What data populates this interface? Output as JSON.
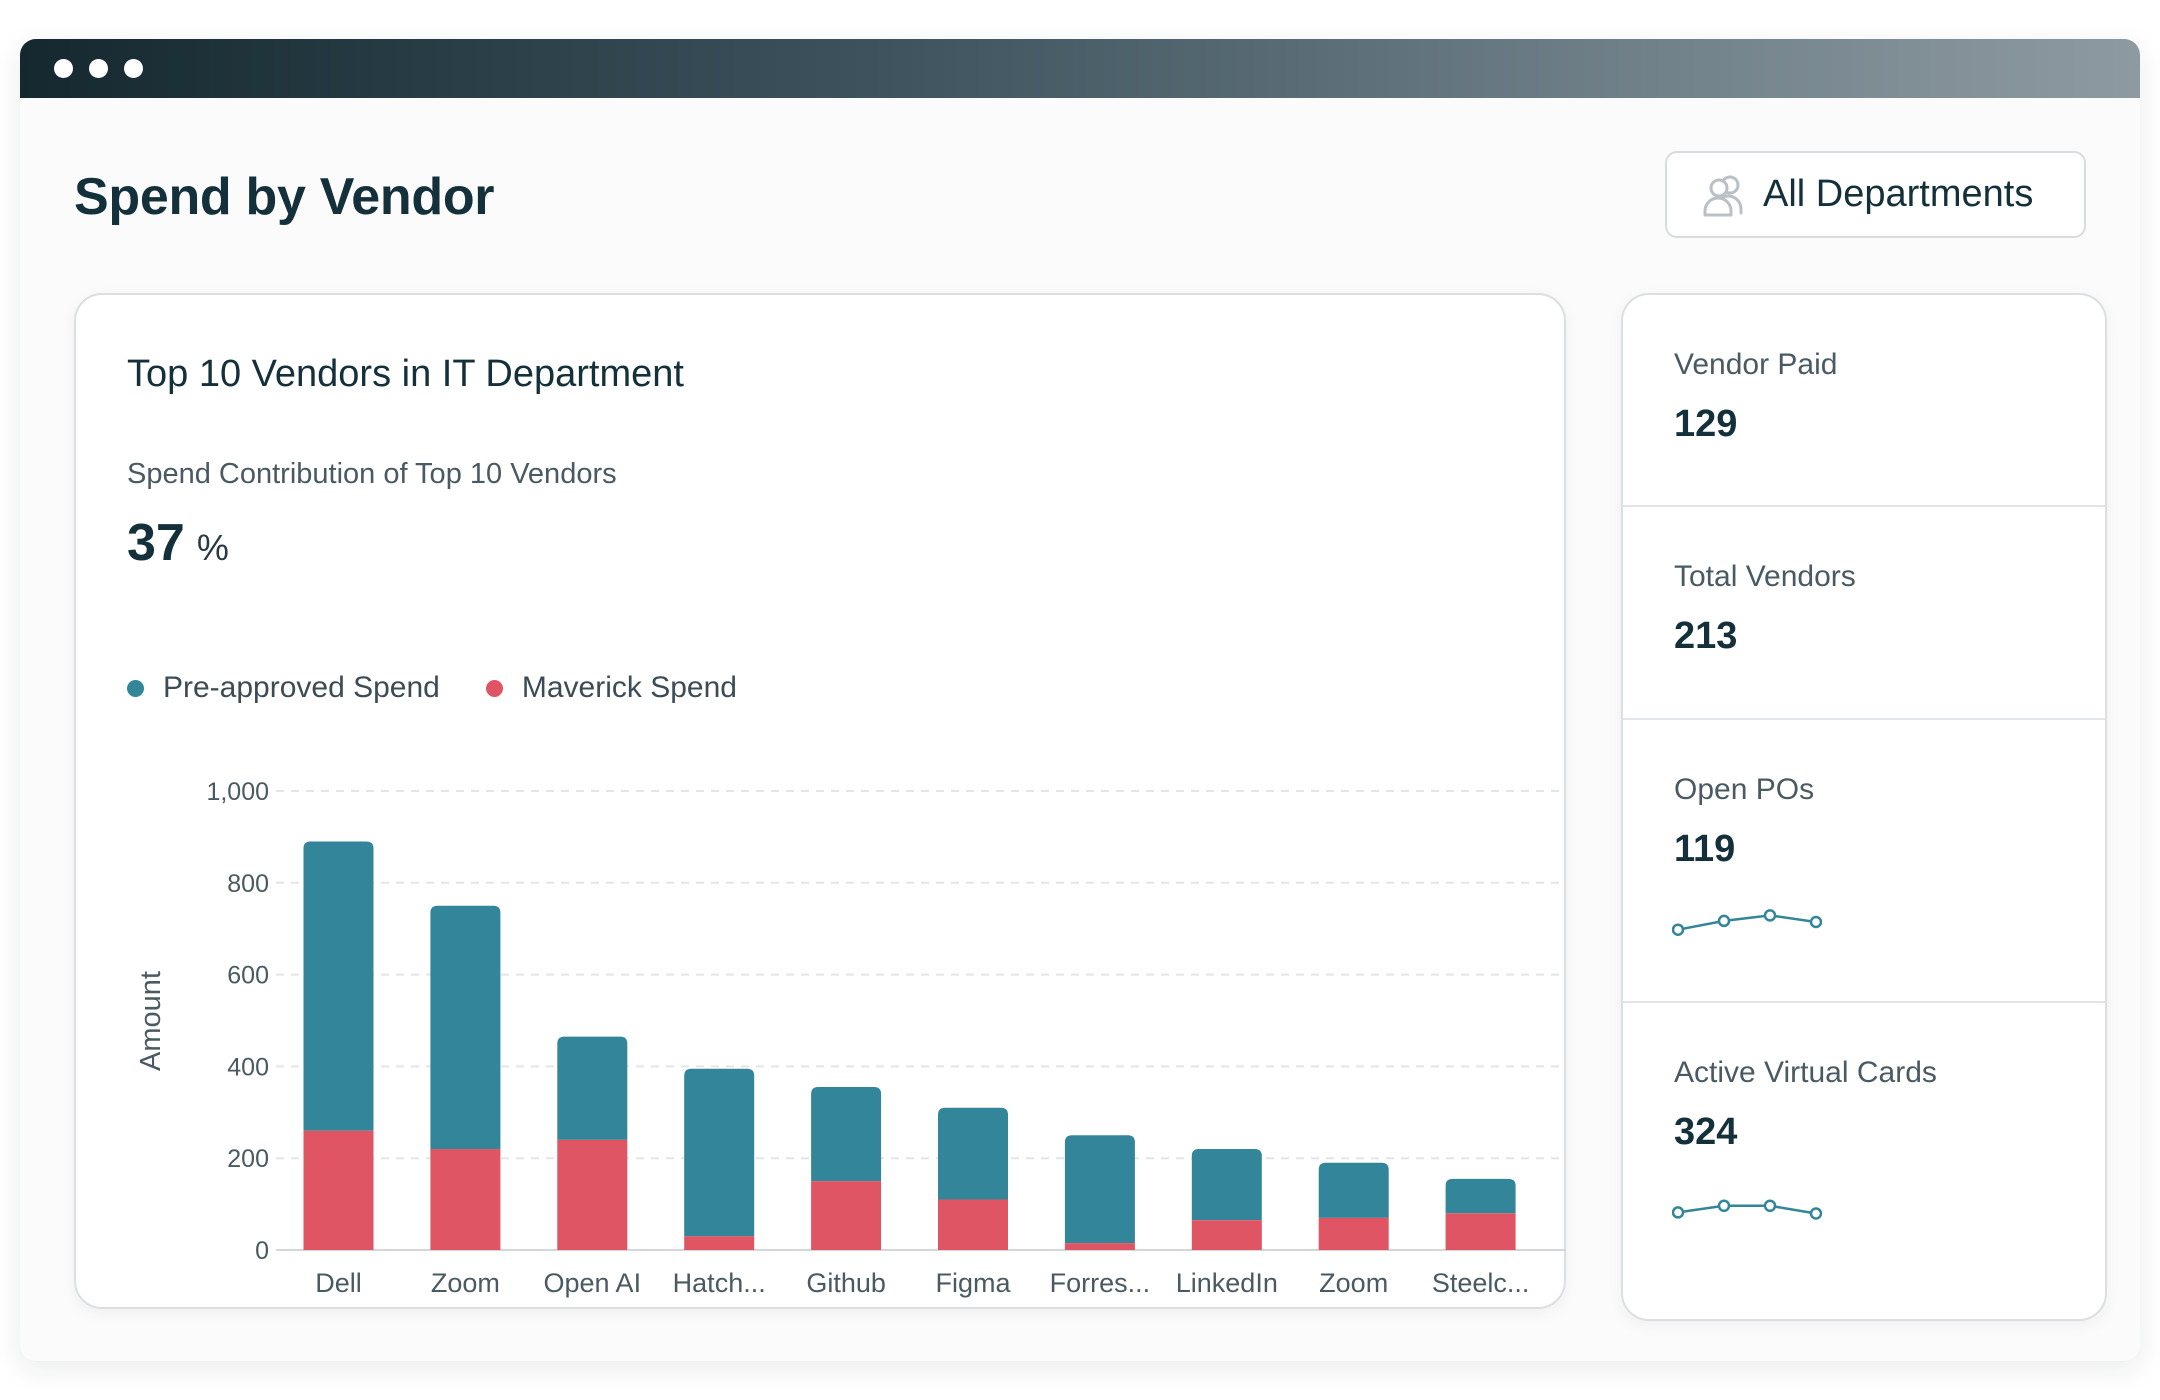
{
  "window": {
    "controls": [
      "dot",
      "dot",
      "dot"
    ]
  },
  "header": {
    "title": "Spend by Vendor",
    "filter_button": {
      "label": "All Departments",
      "icon": "users-icon"
    }
  },
  "chart_card": {
    "title": "Top 10 Vendors in IT Department",
    "kpi_label": "Spend Contribution of Top 10 Vendors",
    "kpi_value": "37",
    "kpi_unit": "%"
  },
  "chart_data": {
    "type": "bar",
    "stacked": true,
    "categories": [
      "Dell",
      "Zoom",
      "Open AI",
      "Hatch...",
      "Github",
      "Figma",
      "Forres...",
      "LinkedIn",
      "Zoom",
      "Steelc..."
    ],
    "series": [
      {
        "name": "Maverick Spend",
        "color": "#e05563",
        "values": [
          260,
          220,
          240,
          30,
          150,
          110,
          15,
          65,
          70,
          80
        ]
      },
      {
        "name": "Pre-approved Spend",
        "color": "#338699",
        "values": [
          630,
          530,
          225,
          365,
          205,
          200,
          235,
          155,
          120,
          75
        ]
      }
    ],
    "legend_order": [
      "Pre-approved Spend",
      "Maverick Spend"
    ],
    "ylabel": "Amount",
    "xlabel": "",
    "ylim": [
      0,
      1000
    ],
    "yticks": [
      0,
      200,
      400,
      600,
      800,
      1000
    ],
    "ytick_labels": [
      "0",
      "200",
      "400",
      "600",
      "800",
      "1,000"
    ],
    "grid": true,
    "legend_position": "top-left"
  },
  "stats": [
    {
      "label": "Vendor Paid",
      "value": "129"
    },
    {
      "label": "Total Vendors",
      "value": "213"
    },
    {
      "label": "Open POs",
      "value": "119",
      "trend": [
        0.15,
        0.55,
        0.8,
        0.5
      ],
      "trend_color": "#338699"
    },
    {
      "label": "Active Virtual Cards",
      "value": "324",
      "trend": [
        0.3,
        0.6,
        0.6,
        0.25
      ],
      "trend_color": "#338699"
    }
  ]
}
